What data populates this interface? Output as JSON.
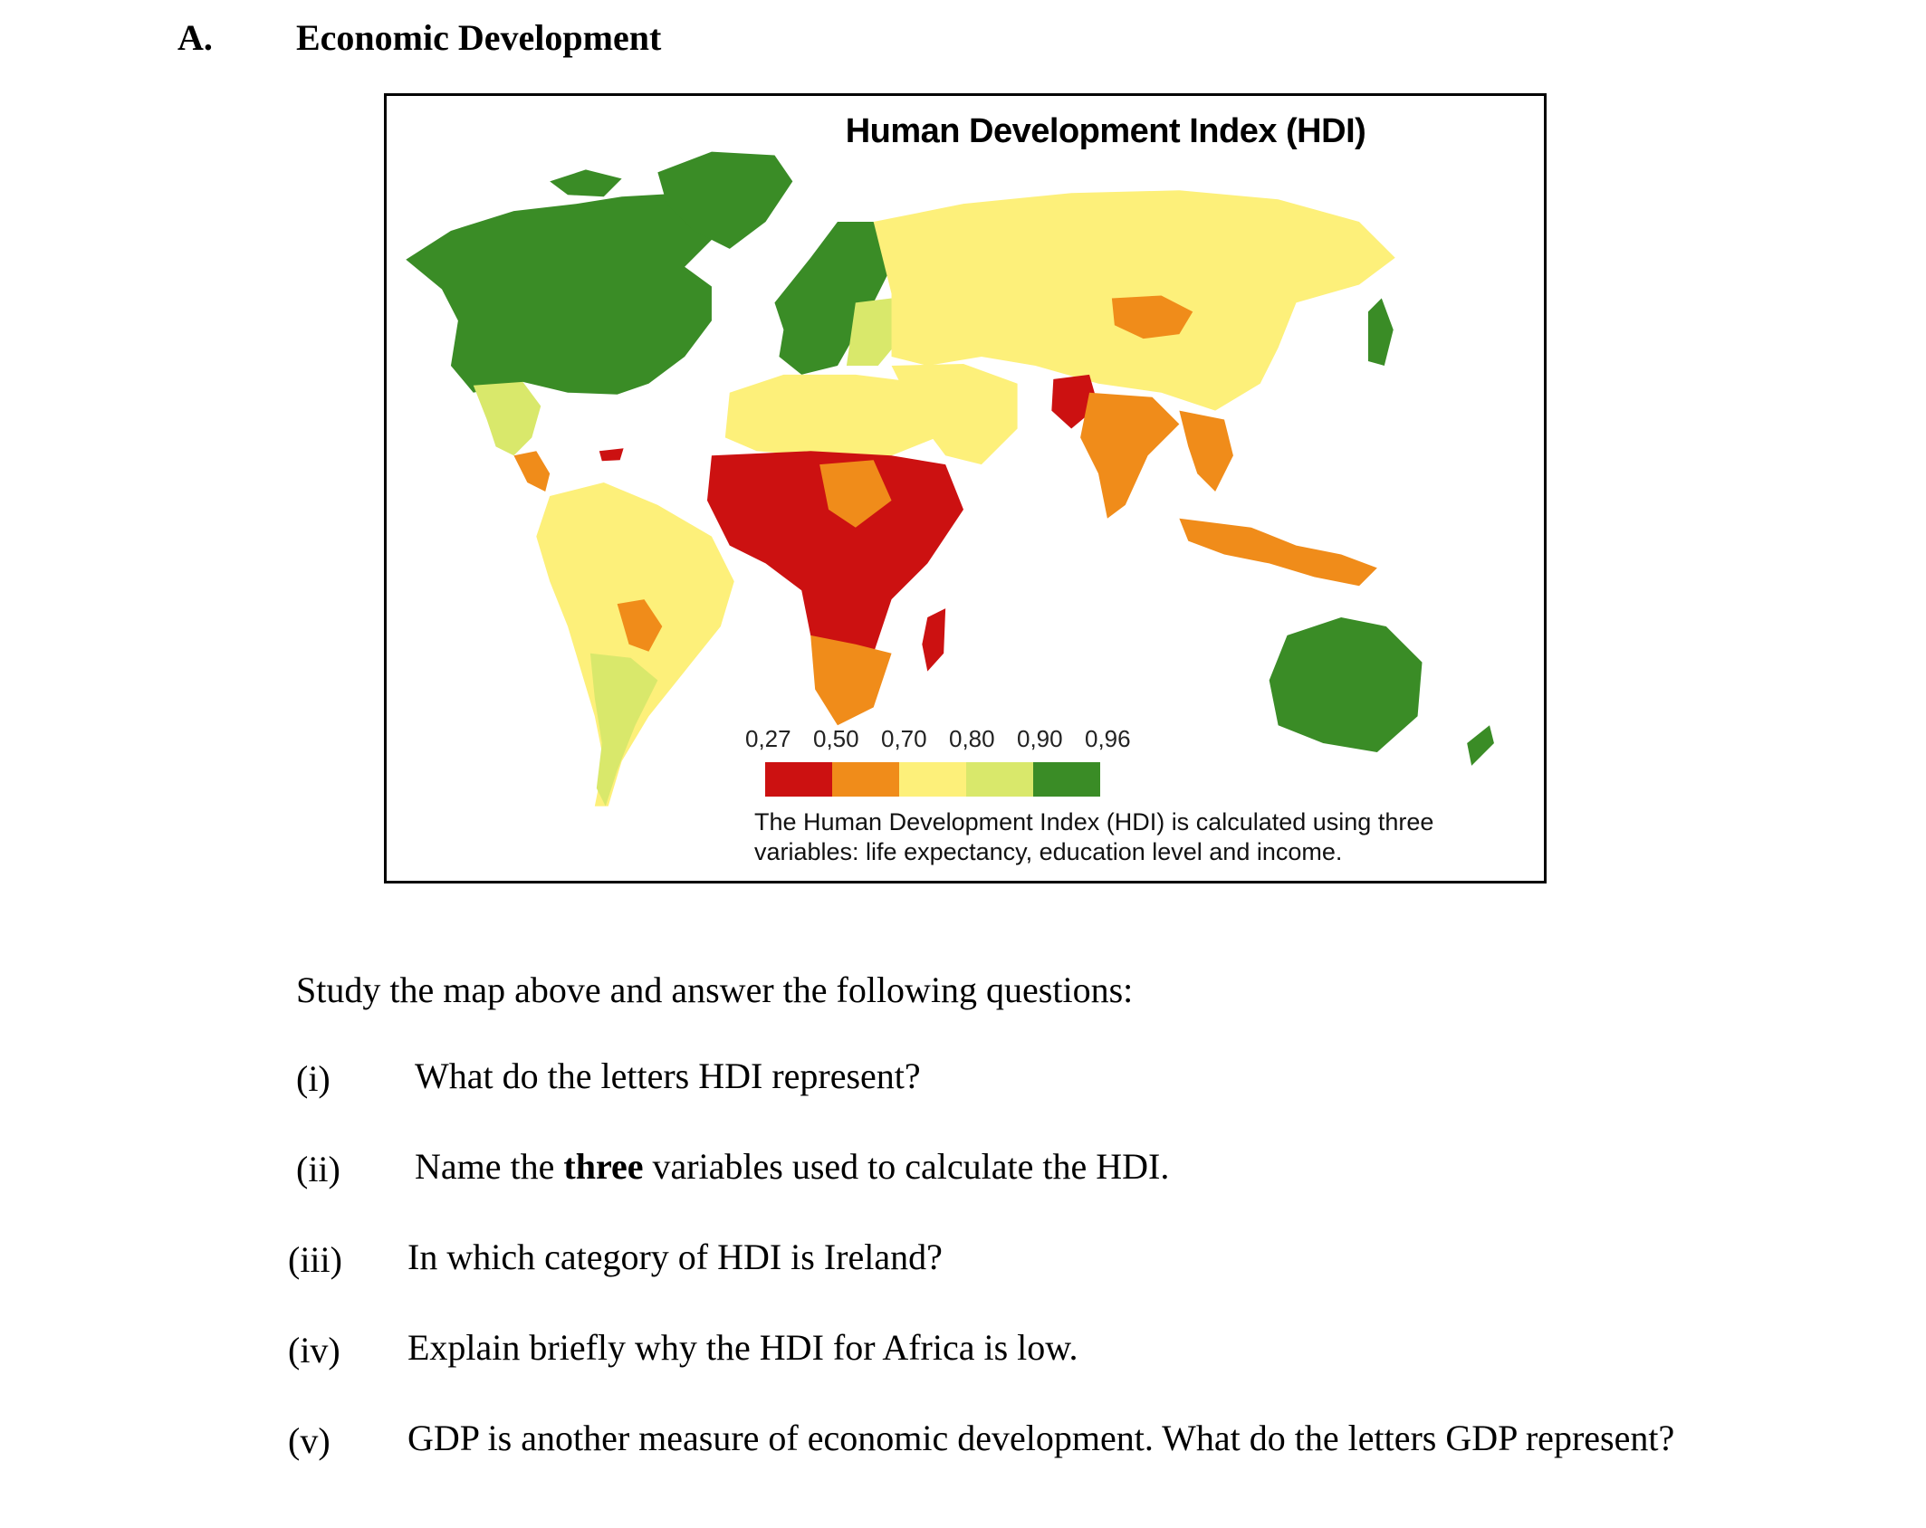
{
  "section": {
    "letter": "A.",
    "title": "Economic Development"
  },
  "map": {
    "title": "Human Development Index (HDI)",
    "legend": {
      "ticks": [
        "0,27",
        "0,50",
        "0,70",
        "0,80",
        "0,90",
        "0,96"
      ],
      "colors": [
        "#cc1111",
        "#f08c1a",
        "#fdf07a",
        "#d9e86b",
        "#3a8c26"
      ]
    },
    "caption_line1": "The Human Development Index (HDI) is calculated using three",
    "caption_line2": "variables: life expectancy, education level and income."
  },
  "intro": "Study the map above and answer the following questions:",
  "questions": [
    {
      "num": "(i)",
      "text": "What do the letters HDI represent?"
    },
    {
      "num": "(ii)",
      "text_before": "Name the ",
      "text_bold": "three",
      "text_after": " variables used to calculate the HDI."
    },
    {
      "num": "(iii)",
      "text": "In which category of HDI is Ireland?"
    },
    {
      "num": "(iv)",
      "text": "Explain briefly why the HDI for Africa is low."
    },
    {
      "num": "(v)",
      "text": "GDP is another measure of economic development. What do the letters GDP represent?"
    }
  ]
}
